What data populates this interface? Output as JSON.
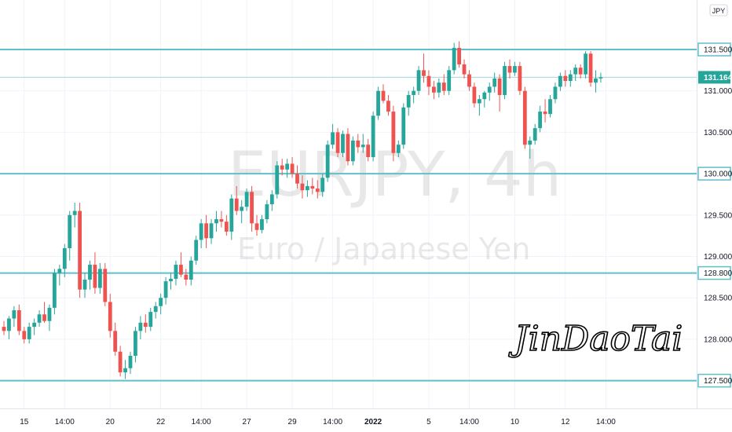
{
  "watermark": {
    "symbol": "EURJPY, 4h",
    "description": "Euro / Japanese Yen"
  },
  "currency": "JPY",
  "signature": "JinDaoTai",
  "colors": {
    "up": "#26a69a",
    "down": "#ef5350",
    "level": "#5fbfcb",
    "price_line": "#9ed8df",
    "price_tag": "#26a69a",
    "grid": "#f0f3fa"
  },
  "chart_data": {
    "type": "candlestick",
    "symbol": "EURJPY",
    "timeframe": "4h",
    "ylim": [
      127.27,
      131.77
    ],
    "y_ticks": [
      "131.500",
      "131.000",
      "130.500",
      "130.000",
      "129.500",
      "129.000",
      "128.500",
      "128.000",
      "127.500"
    ],
    "x_ticks": [
      {
        "label": "15",
        "bar": 4
      },
      {
        "label": "14:00",
        "bar": 12
      },
      {
        "label": "20",
        "bar": 21
      },
      {
        "label": "22",
        "bar": 31
      },
      {
        "label": "14:00",
        "bar": 39
      },
      {
        "label": "27",
        "bar": 48
      },
      {
        "label": "29",
        "bar": 57
      },
      {
        "label": "14:00",
        "bar": 65
      },
      {
        "label": "2022",
        "bar": 73,
        "bold": true
      },
      {
        "label": "5",
        "bar": 84
      },
      {
        "label": "14:00",
        "bar": 92
      },
      {
        "label": "10",
        "bar": 101
      },
      {
        "label": "12",
        "bar": 111
      },
      {
        "label": "14:00",
        "bar": 119
      }
    ],
    "levels": [
      131.5,
      130.0,
      128.8,
      127.5
    ],
    "last_price": 131.164,
    "last_price_label": "131.164",
    "ohlc": [
      [
        128.15,
        128.22,
        128.05,
        128.1
      ],
      [
        128.1,
        128.28,
        128.0,
        128.25
      ],
      [
        128.25,
        128.4,
        128.15,
        128.35
      ],
      [
        128.35,
        128.42,
        128.05,
        128.1
      ],
      [
        128.1,
        128.15,
        127.95,
        128.0
      ],
      [
        128.0,
        128.2,
        127.95,
        128.15
      ],
      [
        128.15,
        128.25,
        128.05,
        128.2
      ],
      [
        128.2,
        128.35,
        128.15,
        128.3
      ],
      [
        128.3,
        128.45,
        128.2,
        128.22
      ],
      [
        128.22,
        128.42,
        128.1,
        128.38
      ],
      [
        128.38,
        128.85,
        128.3,
        128.8
      ],
      [
        128.8,
        128.9,
        128.65,
        128.85
      ],
      [
        128.85,
        129.15,
        128.75,
        129.1
      ],
      [
        129.1,
        129.55,
        128.95,
        129.5
      ],
      [
        129.5,
        129.65,
        129.35,
        129.55
      ],
      [
        129.55,
        129.65,
        128.5,
        128.6
      ],
      [
        128.6,
        128.8,
        128.5,
        128.72
      ],
      [
        128.72,
        128.95,
        128.6,
        128.9
      ],
      [
        128.9,
        129.05,
        128.55,
        128.62
      ],
      [
        128.62,
        128.92,
        128.55,
        128.85
      ],
      [
        128.85,
        128.92,
        128.4,
        128.45
      ],
      [
        128.45,
        128.55,
        128.02,
        128.1
      ],
      [
        128.1,
        128.2,
        127.8,
        127.85
      ],
      [
        127.85,
        127.92,
        127.55,
        127.6
      ],
      [
        127.6,
        127.75,
        127.52,
        127.65
      ],
      [
        127.65,
        127.85,
        127.58,
        127.8
      ],
      [
        127.8,
        128.15,
        127.72,
        128.1
      ],
      [
        128.1,
        128.28,
        128.0,
        128.2
      ],
      [
        128.2,
        128.3,
        128.08,
        128.15
      ],
      [
        128.15,
        128.38,
        128.1,
        128.33
      ],
      [
        128.33,
        128.45,
        128.25,
        128.4
      ],
      [
        128.4,
        128.55,
        128.3,
        128.5
      ],
      [
        128.5,
        128.75,
        128.42,
        128.7
      ],
      [
        128.7,
        128.8,
        128.6,
        128.73
      ],
      [
        128.73,
        128.95,
        128.65,
        128.9
      ],
      [
        128.9,
        129.05,
        128.75,
        128.78
      ],
      [
        128.78,
        128.85,
        128.65,
        128.72
      ],
      [
        128.72,
        129.0,
        128.65,
        128.95
      ],
      [
        128.95,
        129.25,
        128.9,
        129.2
      ],
      [
        129.2,
        129.45,
        129.1,
        129.4
      ],
      [
        129.4,
        129.5,
        129.1,
        129.22
      ],
      [
        129.22,
        129.45,
        129.15,
        129.4
      ],
      [
        129.4,
        129.55,
        129.3,
        129.45
      ],
      [
        129.45,
        129.55,
        129.35,
        129.42
      ],
      [
        129.42,
        129.5,
        129.25,
        129.3
      ],
      [
        129.3,
        129.75,
        129.2,
        129.7
      ],
      [
        129.7,
        129.85,
        129.5,
        129.55
      ],
      [
        129.55,
        129.68,
        129.4,
        129.6
      ],
      [
        129.6,
        129.82,
        129.55,
        129.78
      ],
      [
        129.78,
        129.85,
        129.3,
        129.4
      ],
      [
        129.4,
        129.5,
        129.25,
        129.32
      ],
      [
        129.32,
        129.5,
        129.28,
        129.45
      ],
      [
        129.45,
        129.68,
        129.4,
        129.63
      ],
      [
        129.63,
        129.8,
        129.55,
        129.75
      ],
      [
        129.75,
        130.15,
        129.7,
        130.1
      ],
      [
        130.1,
        130.18,
        129.98,
        130.05
      ],
      [
        130.05,
        130.18,
        129.95,
        130.12
      ],
      [
        130.12,
        130.2,
        129.95,
        130.0
      ],
      [
        130.0,
        130.1,
        129.82,
        129.88
      ],
      [
        129.88,
        129.98,
        129.7,
        129.8
      ],
      [
        129.8,
        129.92,
        129.72,
        129.85
      ],
      [
        129.85,
        129.95,
        129.75,
        129.82
      ],
      [
        129.82,
        129.92,
        129.7,
        129.78
      ],
      [
        129.78,
        130.0,
        129.72,
        129.95
      ],
      [
        129.95,
        130.4,
        129.9,
        130.35
      ],
      [
        130.35,
        130.6,
        130.3,
        130.5
      ],
      [
        130.5,
        130.55,
        130.2,
        130.25
      ],
      [
        130.25,
        130.52,
        130.2,
        130.48
      ],
      [
        130.48,
        130.55,
        130.1,
        130.15
      ],
      [
        130.15,
        130.45,
        130.1,
        130.4
      ],
      [
        130.4,
        130.48,
        130.25,
        130.32
      ],
      [
        130.32,
        130.48,
        130.25,
        130.35
      ],
      [
        130.35,
        130.42,
        130.15,
        130.2
      ],
      [
        130.2,
        130.75,
        130.15,
        130.7
      ],
      [
        130.7,
        131.05,
        130.65,
        131.0
      ],
      [
        131.0,
        131.08,
        130.85,
        130.88
      ],
      [
        130.88,
        130.95,
        130.7,
        130.75
      ],
      [
        130.75,
        130.82,
        130.15,
        130.25
      ],
      [
        130.25,
        130.4,
        130.2,
        130.35
      ],
      [
        130.35,
        130.85,
        130.3,
        130.8
      ],
      [
        130.8,
        131.0,
        130.7,
        130.95
      ],
      [
        130.95,
        131.05,
        130.85,
        131.0
      ],
      [
        131.0,
        131.3,
        130.95,
        131.25
      ],
      [
        131.25,
        131.45,
        131.1,
        131.18
      ],
      [
        131.18,
        131.25,
        130.95,
        131.05
      ],
      [
        131.05,
        131.12,
        130.9,
        130.98
      ],
      [
        130.98,
        131.15,
        130.92,
        131.1
      ],
      [
        131.1,
        131.2,
        130.95,
        131.0
      ],
      [
        131.0,
        131.3,
        130.95,
        131.25
      ],
      [
        131.25,
        131.58,
        131.2,
        131.52
      ],
      [
        131.52,
        131.6,
        131.28,
        131.32
      ],
      [
        131.32,
        131.38,
        131.15,
        131.2
      ],
      [
        131.2,
        131.25,
        131.0,
        131.05
      ],
      [
        131.05,
        131.1,
        130.8,
        130.85
      ],
      [
        130.85,
        130.95,
        130.7,
        130.9
      ],
      [
        130.9,
        131.0,
        130.8,
        130.98
      ],
      [
        130.98,
        131.1,
        130.88,
        131.05
      ],
      [
        131.05,
        131.22,
        130.98,
        131.15
      ],
      [
        131.15,
        131.2,
        130.75,
        130.95
      ],
      [
        130.95,
        131.35,
        130.9,
        131.3
      ],
      [
        131.3,
        131.38,
        131.15,
        131.22
      ],
      [
        131.22,
        131.35,
        131.18,
        131.3
      ],
      [
        131.3,
        131.35,
        130.95,
        131.0
      ],
      [
        131.0,
        131.05,
        130.3,
        130.35
      ],
      [
        130.35,
        130.45,
        130.18,
        130.4
      ],
      [
        130.4,
        130.6,
        130.35,
        130.55
      ],
      [
        130.55,
        130.82,
        130.5,
        130.75
      ],
      [
        130.75,
        130.9,
        130.62,
        130.72
      ],
      [
        130.72,
        130.95,
        130.68,
        130.9
      ],
      [
        130.9,
        131.1,
        130.85,
        131.05
      ],
      [
        131.05,
        131.22,
        131.0,
        131.18
      ],
      [
        131.18,
        131.25,
        131.05,
        131.12
      ],
      [
        131.12,
        131.25,
        131.05,
        131.2
      ],
      [
        131.2,
        131.32,
        131.12,
        131.28
      ],
      [
        131.28,
        131.32,
        131.15,
        131.2
      ],
      [
        131.2,
        131.48,
        131.15,
        131.45
      ],
      [
        131.45,
        131.48,
        131.05,
        131.1
      ],
      [
        131.1,
        131.25,
        130.98,
        131.15
      ],
      [
        131.15,
        131.22,
        131.1,
        131.164
      ]
    ]
  }
}
